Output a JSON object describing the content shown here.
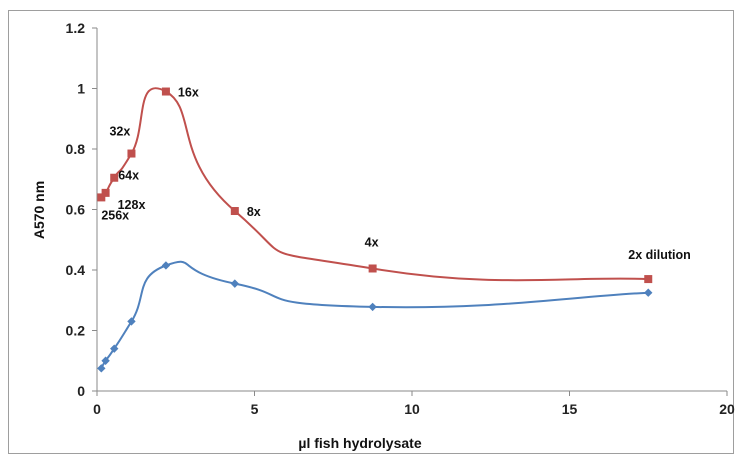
{
  "chart_data": {
    "type": "line",
    "title": "",
    "xlabel": "µl fish hydrolysate",
    "ylabel": "A570 nm",
    "xlim": [
      0,
      20
    ],
    "ylim": [
      0,
      1.2
    ],
    "x_ticks": [
      "0",
      "5",
      "10",
      "15",
      "20"
    ],
    "y_ticks": [
      "0",
      "0.2",
      "0.4",
      "0.6",
      "0.8",
      "1",
      "1.2"
    ],
    "grid": false,
    "legend": "none",
    "series": [
      {
        "color": "#c0504d",
        "marker": "square",
        "x": [
          0.137,
          0.273,
          0.547,
          1.094,
          2.188,
          4.375,
          8.75,
          17.5
        ],
        "y": [
          0.64,
          0.655,
          0.705,
          0.785,
          0.99,
          0.595,
          0.405,
          0.37
        ]
      },
      {
        "color": "#4f81bd",
        "marker": "diamond",
        "x": [
          0.137,
          0.273,
          0.547,
          1.094,
          2.188,
          4.375,
          8.75,
          17.5
        ],
        "y": [
          0.075,
          0.1,
          0.14,
          0.23,
          0.415,
          0.355,
          0.278,
          0.325
        ]
      }
    ],
    "annotations": [
      {
        "text": "256x",
        "x": 0.137,
        "y": 0.64
      },
      {
        "text": "128x",
        "x": 0.273,
        "y": 0.655
      },
      {
        "text": "64x",
        "x": 0.547,
        "y": 0.705
      },
      {
        "text": "32x",
        "x": 1.094,
        "y": 0.785
      },
      {
        "text": "16x",
        "x": 2.188,
        "y": 0.99
      },
      {
        "text": "8x",
        "x": 4.375,
        "y": 0.595
      },
      {
        "text": "4x",
        "x": 8.75,
        "y": 0.405
      },
      {
        "text": "2x dilution",
        "x": 17.5,
        "y": 0.37
      }
    ]
  }
}
